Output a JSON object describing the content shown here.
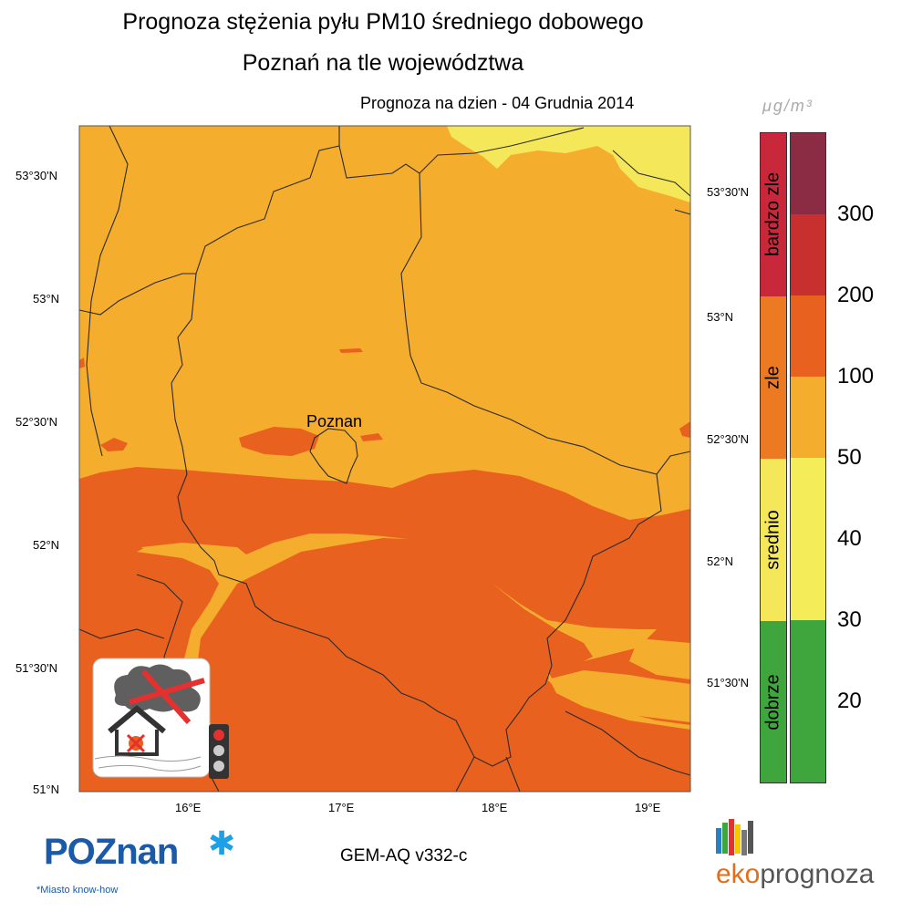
{
  "title": {
    "line1": "Prognoza stężenia pyłu PM10 średniego dobowego",
    "line2": "Poznań na tle województwa"
  },
  "forecast": {
    "label": "Prognoza na dzien -  04 Grudnia 2014"
  },
  "map": {
    "city_label": "Poznan",
    "lat_labels_left": [
      "53°30'N",
      "53°N",
      "52°30'N",
      "52°N",
      "51°30'N",
      "51°N"
    ],
    "lat_labels_right": [
      "53°30'N",
      "53°N",
      "52°30'N",
      "52°N",
      "51°30'N"
    ],
    "lon_labels": [
      "16°E",
      "17°E",
      "18°E",
      "19°E"
    ],
    "colors": {
      "lightorange": "#f5ad2e",
      "darkorange": "#e8611f",
      "yellow": "#f5e75a",
      "border": "#2b2b2b"
    }
  },
  "legend": {
    "unit": "μg/m³",
    "categories": [
      {
        "label": "bardzo zle",
        "color": "#c8283a"
      },
      {
        "label": "zle",
        "color": "#ec7a22"
      },
      {
        "label": "srednio",
        "color": "#f5e75a"
      },
      {
        "label": "dobrze",
        "color": "#3ea63c"
      }
    ],
    "levels": [
      {
        "color": "#8b2c44"
      },
      {
        "color": "#c8302f"
      },
      {
        "color": "#e8611f"
      },
      {
        "color": "#f5ad2e"
      },
      {
        "color": "#f5ec5a"
      },
      {
        "color": "#f5ec5a"
      },
      {
        "color": "#3ea63c"
      },
      {
        "color": "#3ea63c"
      }
    ],
    "ticks": [
      "300",
      "200",
      "100",
      "50",
      "40",
      "30",
      "20"
    ]
  },
  "footer": {
    "poznan_logo": "POZnan",
    "poznan_tagline": "*Miasto know-how",
    "model": "GEM-AQ v332-c",
    "eko_part1": "eko",
    "eko_part2": "prognoza"
  }
}
